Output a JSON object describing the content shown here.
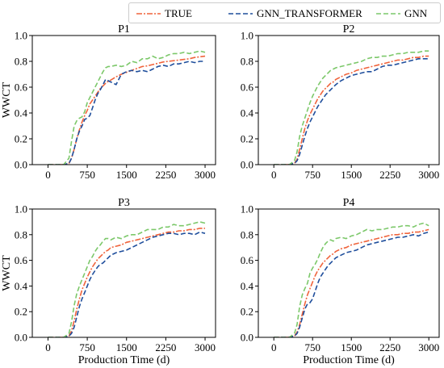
{
  "chart_data": [
    {
      "type": "line",
      "title": "P1",
      "ylabel": "WWCT",
      "xlabel": "",
      "xlim": [
        -300,
        3200
      ],
      "ylim": [
        0,
        1.0
      ],
      "xticks": [
        "0",
        "750",
        "1500",
        "2250",
        "3000"
      ],
      "yticks": [
        "0.0",
        "0.2",
        "0.4",
        "0.6",
        "0.8",
        "1.0"
      ],
      "series": [
        {
          "name": "TRUE",
          "color": "#f0643c",
          "x": [
            0,
            300,
            400,
            450,
            500,
            550,
            600,
            650,
            700,
            750,
            800,
            850,
            900,
            950,
            1000,
            1050,
            1100,
            1150,
            1200,
            1300,
            1400,
            1500,
            1600,
            1700,
            1800,
            1900,
            2000,
            2100,
            2200,
            2300,
            2400,
            2500,
            2600,
            2700,
            2800,
            2900,
            3000
          ],
          "y": [
            0,
            0,
            0.01,
            0.05,
            0.12,
            0.2,
            0.27,
            0.33,
            0.38,
            0.42,
            0.47,
            0.5,
            0.53,
            0.56,
            0.59,
            0.61,
            0.63,
            0.645,
            0.655,
            0.68,
            0.7,
            0.715,
            0.73,
            0.745,
            0.76,
            0.765,
            0.775,
            0.785,
            0.795,
            0.8,
            0.805,
            0.81,
            0.815,
            0.82,
            0.83,
            0.835,
            0.84
          ]
        },
        {
          "name": "GNN_TRANSFORMER",
          "color": "#1f4e9c",
          "x": [
            0,
            300,
            400,
            450,
            500,
            550,
            600,
            650,
            700,
            750,
            800,
            850,
            900,
            950,
            1000,
            1050,
            1100,
            1150,
            1200,
            1300,
            1400,
            1500,
            1600,
            1700,
            1800,
            1900,
            2000,
            2100,
            2200,
            2300,
            2400,
            2500,
            2600,
            2700,
            2800,
            2900,
            3000
          ],
          "y": [
            0,
            0,
            0.01,
            0.05,
            0.12,
            0.2,
            0.26,
            0.3,
            0.35,
            0.36,
            0.38,
            0.44,
            0.5,
            0.55,
            0.58,
            0.62,
            0.66,
            0.65,
            0.64,
            0.62,
            0.7,
            0.72,
            0.73,
            0.72,
            0.73,
            0.72,
            0.74,
            0.76,
            0.77,
            0.76,
            0.78,
            0.78,
            0.79,
            0.8,
            0.79,
            0.8,
            0.8
          ]
        },
        {
          "name": "GNN",
          "color": "#7cc86a",
          "x": [
            0,
            300,
            400,
            450,
            500,
            550,
            600,
            650,
            700,
            750,
            800,
            850,
            900,
            950,
            1000,
            1050,
            1100,
            1150,
            1200,
            1300,
            1400,
            1500,
            1600,
            1700,
            1800,
            1900,
            2000,
            2100,
            2200,
            2300,
            2400,
            2500,
            2600,
            2700,
            2800,
            2900,
            3000
          ],
          "y": [
            0,
            0,
            0.05,
            0.18,
            0.3,
            0.34,
            0.36,
            0.37,
            0.41,
            0.48,
            0.52,
            0.56,
            0.6,
            0.64,
            0.68,
            0.72,
            0.75,
            0.76,
            0.76,
            0.77,
            0.76,
            0.77,
            0.8,
            0.79,
            0.82,
            0.82,
            0.84,
            0.82,
            0.83,
            0.85,
            0.86,
            0.86,
            0.87,
            0.86,
            0.87,
            0.88,
            0.87
          ]
        }
      ]
    },
    {
      "type": "line",
      "title": "P2",
      "ylabel": "",
      "xlabel": "",
      "xlim": [
        -300,
        3200
      ],
      "ylim": [
        0,
        1.0
      ],
      "xticks": [
        "0",
        "750",
        "1500",
        "2250",
        "3000"
      ],
      "yticks": [
        "0.0",
        "0.2",
        "0.4",
        "0.6",
        "0.8",
        "1.0"
      ],
      "series": [
        {
          "name": "TRUE",
          "color": "#f0643c",
          "x": [
            0,
            300,
            400,
            450,
            500,
            550,
            600,
            650,
            700,
            750,
            800,
            850,
            900,
            950,
            1000,
            1050,
            1100,
            1150,
            1200,
            1300,
            1400,
            1500,
            1600,
            1700,
            1800,
            1900,
            2000,
            2100,
            2200,
            2300,
            2400,
            2500,
            2600,
            2700,
            2800,
            2900,
            3000
          ],
          "y": [
            0,
            0,
            0.01,
            0.04,
            0.12,
            0.2,
            0.28,
            0.34,
            0.39,
            0.43,
            0.47,
            0.51,
            0.54,
            0.57,
            0.59,
            0.61,
            0.63,
            0.64,
            0.66,
            0.68,
            0.7,
            0.71,
            0.73,
            0.74,
            0.75,
            0.76,
            0.77,
            0.78,
            0.79,
            0.8,
            0.81,
            0.81,
            0.82,
            0.83,
            0.83,
            0.84,
            0.84
          ]
        },
        {
          "name": "GNN_TRANSFORMER",
          "color": "#1f4e9c",
          "x": [
            0,
            300,
            400,
            450,
            500,
            550,
            600,
            650,
            700,
            750,
            800,
            850,
            900,
            950,
            1000,
            1050,
            1100,
            1150,
            1200,
            1300,
            1400,
            1500,
            1600,
            1700,
            1800,
            1900,
            2000,
            2100,
            2200,
            2300,
            2400,
            2500,
            2600,
            2700,
            2800,
            2900,
            3000
          ],
          "y": [
            0,
            0,
            0.01,
            0.03,
            0.08,
            0.15,
            0.22,
            0.28,
            0.33,
            0.37,
            0.41,
            0.45,
            0.48,
            0.51,
            0.54,
            0.56,
            0.58,
            0.6,
            0.62,
            0.65,
            0.67,
            0.69,
            0.7,
            0.71,
            0.72,
            0.72,
            0.74,
            0.76,
            0.77,
            0.77,
            0.78,
            0.79,
            0.8,
            0.81,
            0.82,
            0.82,
            0.82
          ]
        },
        {
          "name": "GNN",
          "color": "#7cc86a",
          "x": [
            0,
            300,
            400,
            450,
            500,
            550,
            600,
            650,
            700,
            750,
            800,
            850,
            900,
            950,
            1000,
            1050,
            1100,
            1150,
            1200,
            1300,
            1400,
            1500,
            1600,
            1700,
            1800,
            1900,
            2000,
            2100,
            2200,
            2300,
            2400,
            2500,
            2600,
            2700,
            2800,
            2900,
            3000
          ],
          "y": [
            0,
            0,
            0.03,
            0.1,
            0.22,
            0.3,
            0.36,
            0.42,
            0.48,
            0.53,
            0.57,
            0.61,
            0.64,
            0.67,
            0.69,
            0.71,
            0.73,
            0.74,
            0.75,
            0.76,
            0.77,
            0.78,
            0.79,
            0.8,
            0.82,
            0.83,
            0.83,
            0.84,
            0.84,
            0.85,
            0.86,
            0.86,
            0.87,
            0.87,
            0.87,
            0.88,
            0.88
          ]
        }
      ]
    },
    {
      "type": "line",
      "title": "P3",
      "ylabel": "WWCT",
      "xlabel": "Production Time (d)",
      "xlim": [
        -300,
        3200
      ],
      "ylim": [
        0,
        1.0
      ],
      "xticks": [
        "0",
        "750",
        "1500",
        "2250",
        "3000"
      ],
      "yticks": [
        "0.0",
        "0.2",
        "0.4",
        "0.6",
        "0.8",
        "1.0"
      ],
      "series": [
        {
          "name": "TRUE",
          "color": "#f0643c",
          "x": [
            0,
            300,
            400,
            450,
            500,
            550,
            600,
            650,
            700,
            750,
            800,
            850,
            900,
            950,
            1000,
            1050,
            1100,
            1150,
            1200,
            1300,
            1400,
            1500,
            1600,
            1700,
            1800,
            1900,
            2000,
            2100,
            2200,
            2300,
            2400,
            2500,
            2600,
            2700,
            2800,
            2900,
            3000
          ],
          "y": [
            0,
            0,
            0.01,
            0.05,
            0.13,
            0.22,
            0.3,
            0.37,
            0.42,
            0.47,
            0.51,
            0.55,
            0.58,
            0.61,
            0.63,
            0.65,
            0.67,
            0.68,
            0.7,
            0.71,
            0.72,
            0.74,
            0.75,
            0.76,
            0.77,
            0.78,
            0.79,
            0.8,
            0.81,
            0.82,
            0.82,
            0.83,
            0.83,
            0.84,
            0.84,
            0.85,
            0.85
          ]
        },
        {
          "name": "GNN_TRANSFORMER",
          "color": "#1f4e9c",
          "x": [
            0,
            300,
            400,
            450,
            500,
            550,
            600,
            650,
            700,
            750,
            800,
            850,
            900,
            950,
            1000,
            1050,
            1100,
            1150,
            1200,
            1300,
            1400,
            1500,
            1600,
            1700,
            1800,
            1900,
            2000,
            2100,
            2200,
            2300,
            2400,
            2500,
            2600,
            2700,
            2800,
            2900,
            3000
          ],
          "y": [
            0,
            0,
            0.01,
            0.03,
            0.08,
            0.16,
            0.24,
            0.3,
            0.35,
            0.4,
            0.45,
            0.49,
            0.52,
            0.55,
            0.57,
            0.58,
            0.6,
            0.62,
            0.64,
            0.66,
            0.67,
            0.68,
            0.7,
            0.72,
            0.74,
            0.76,
            0.78,
            0.79,
            0.8,
            0.81,
            0.81,
            0.8,
            0.81,
            0.81,
            0.8,
            0.82,
            0.81
          ]
        },
        {
          "name": "GNN",
          "color": "#7cc86a",
          "x": [
            0,
            300,
            400,
            450,
            500,
            550,
            600,
            650,
            700,
            750,
            800,
            850,
            900,
            950,
            1000,
            1050,
            1100,
            1150,
            1200,
            1300,
            1400,
            1500,
            1600,
            1700,
            1800,
            1900,
            2000,
            2100,
            2200,
            2300,
            2400,
            2500,
            2600,
            2700,
            2800,
            2900,
            3000
          ],
          "y": [
            0,
            0,
            0.03,
            0.12,
            0.25,
            0.34,
            0.4,
            0.45,
            0.5,
            0.55,
            0.6,
            0.63,
            0.67,
            0.7,
            0.72,
            0.75,
            0.77,
            0.77,
            0.76,
            0.78,
            0.77,
            0.79,
            0.8,
            0.8,
            0.82,
            0.84,
            0.84,
            0.84,
            0.86,
            0.86,
            0.88,
            0.87,
            0.87,
            0.88,
            0.89,
            0.9,
            0.89
          ]
        }
      ]
    },
    {
      "type": "line",
      "title": "P4",
      "ylabel": "",
      "xlabel": "Production Time (d)",
      "xlim": [
        -300,
        3200
      ],
      "ylim": [
        0,
        1.0
      ],
      "xticks": [
        "0",
        "750",
        "1500",
        "2250",
        "3000"
      ],
      "yticks": [
        "0.0",
        "0.2",
        "0.4",
        "0.6",
        "0.8",
        "1.0"
      ],
      "series": [
        {
          "name": "TRUE",
          "color": "#f0643c",
          "x": [
            0,
            300,
            400,
            450,
            500,
            550,
            600,
            650,
            700,
            750,
            800,
            850,
            900,
            950,
            1000,
            1050,
            1100,
            1150,
            1200,
            1300,
            1400,
            1500,
            1600,
            1700,
            1800,
            1900,
            2000,
            2100,
            2200,
            2300,
            2400,
            2500,
            2600,
            2700,
            2800,
            2900,
            3000
          ],
          "y": [
            0,
            0,
            0.01,
            0.04,
            0.1,
            0.18,
            0.26,
            0.33,
            0.38,
            0.43,
            0.48,
            0.52,
            0.55,
            0.58,
            0.6,
            0.62,
            0.64,
            0.65,
            0.67,
            0.69,
            0.7,
            0.72,
            0.73,
            0.74,
            0.75,
            0.76,
            0.77,
            0.78,
            0.79,
            0.8,
            0.8,
            0.81,
            0.81,
            0.82,
            0.82,
            0.83,
            0.84
          ]
        },
        {
          "name": "GNN_TRANSFORMER",
          "color": "#1f4e9c",
          "x": [
            0,
            300,
            400,
            450,
            500,
            550,
            600,
            650,
            700,
            750,
            800,
            850,
            900,
            950,
            1000,
            1050,
            1100,
            1150,
            1200,
            1300,
            1400,
            1500,
            1600,
            1700,
            1800,
            1900,
            2000,
            2100,
            2200,
            2300,
            2400,
            2500,
            2600,
            2700,
            2800,
            2900,
            3000
          ],
          "y": [
            0,
            0,
            0.01,
            0.03,
            0.08,
            0.15,
            0.22,
            0.26,
            0.27,
            0.3,
            0.36,
            0.42,
            0.47,
            0.5,
            0.53,
            0.56,
            0.58,
            0.6,
            0.62,
            0.64,
            0.66,
            0.67,
            0.68,
            0.7,
            0.72,
            0.73,
            0.74,
            0.75,
            0.76,
            0.77,
            0.78,
            0.78,
            0.79,
            0.8,
            0.79,
            0.81,
            0.82
          ]
        },
        {
          "name": "GNN",
          "color": "#7cc86a",
          "x": [
            0,
            300,
            400,
            450,
            500,
            550,
            600,
            650,
            700,
            750,
            800,
            850,
            900,
            950,
            1000,
            1050,
            1100,
            1150,
            1200,
            1300,
            1400,
            1500,
            1600,
            1700,
            1800,
            1900,
            2000,
            2100,
            2200,
            2300,
            2400,
            2500,
            2600,
            2700,
            2800,
            2900,
            3000
          ],
          "y": [
            0,
            0,
            0.03,
            0.1,
            0.24,
            0.33,
            0.38,
            0.42,
            0.5,
            0.54,
            0.57,
            0.61,
            0.66,
            0.7,
            0.73,
            0.75,
            0.76,
            0.75,
            0.77,
            0.78,
            0.77,
            0.79,
            0.8,
            0.82,
            0.84,
            0.83,
            0.84,
            0.84,
            0.85,
            0.86,
            0.86,
            0.87,
            0.87,
            0.86,
            0.88,
            0.89,
            0.87
          ]
        }
      ]
    }
  ],
  "legend": {
    "entries": [
      {
        "label": "TRUE",
        "color": "#f0643c"
      },
      {
        "label": "GNN_TRANSFORMER",
        "color": "#1f4e9c"
      },
      {
        "label": "GNN",
        "color": "#7cc86a"
      }
    ]
  }
}
